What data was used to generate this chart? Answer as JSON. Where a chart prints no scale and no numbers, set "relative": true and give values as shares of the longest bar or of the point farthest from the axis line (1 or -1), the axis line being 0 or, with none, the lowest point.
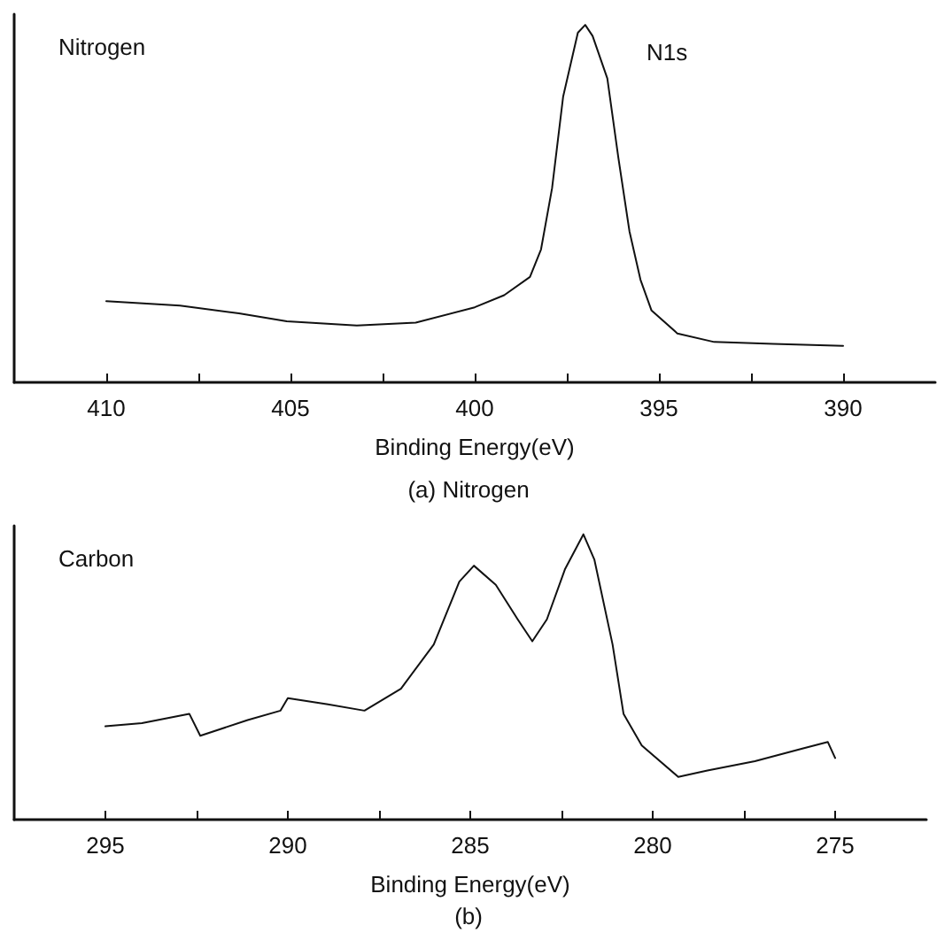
{
  "chart_data": [
    {
      "type": "line",
      "title": "(a) Nitrogen",
      "xlabel": "Binding Energy(eV)",
      "relative": true,
      "annotations": [
        "Nitrogen",
        "N1s"
      ],
      "xlim": [
        412.5,
        387.5
      ],
      "xticks": [
        410,
        {
          "value": 407.5,
          "label": null
        },
        405,
        {
          "value": 402.5,
          "label": null
        },
        400,
        {
          "value": 397.5,
          "label": null
        },
        395,
        {
          "value": 392.5,
          "label": null
        },
        390
      ],
      "grid": false,
      "marker": "none",
      "line_style": "solid",
      "series": [
        {
          "color": "#111111",
          "x": [
            410,
            408.0,
            406.4,
            405.1,
            403.2,
            401.6,
            400,
            399.2,
            398.5,
            398.2,
            397.9,
            397.6,
            397.2,
            397.0,
            396.8,
            396.4,
            396.1,
            395.8,
            395.5,
            395.2,
            394.5,
            393.5,
            391.9,
            390
          ],
          "values": [
            0.227,
            0.215,
            0.193,
            0.171,
            0.159,
            0.167,
            0.21,
            0.244,
            0.295,
            0.372,
            0.543,
            0.799,
            0.978,
            1,
            0.969,
            0.85,
            0.628,
            0.423,
            0.287,
            0.201,
            0.137,
            0.113,
            0.108,
            0.102
          ]
        }
      ]
    },
    {
      "type": "line",
      "title": "(b)",
      "xlabel": "Binding Energy(eV)",
      "relative": true,
      "annotations": [
        "Carbon"
      ],
      "xlim": [
        297.5,
        272.5
      ],
      "xticks": [
        295,
        {
          "value": 292.5,
          "label": null
        },
        290,
        {
          "value": 287.5,
          "label": null
        },
        285,
        {
          "value": 282.5,
          "label": null
        },
        280,
        {
          "value": 277.5,
          "label": null
        },
        275
      ],
      "grid": false,
      "marker": "none",
      "line_style": "solid",
      "series": [
        {
          "color": "#111111",
          "x": [
            295,
            294.0,
            292.7,
            292.4,
            291.1,
            290.2,
            290.0,
            288.9,
            287.9,
            286.9,
            286.0,
            285.3,
            284.9,
            284.3,
            283.7,
            283.3,
            282.9,
            282.4,
            281.9,
            281.6,
            281.1,
            280.8,
            280.3,
            279.3,
            278.5,
            277.2,
            275.9,
            275.2,
            275
          ],
          "values": [
            0.327,
            0.338,
            0.371,
            0.294,
            0.349,
            0.382,
            0.426,
            0.404,
            0.382,
            0.459,
            0.614,
            0.834,
            0.89,
            0.823,
            0.702,
            0.625,
            0.702,
            0.879,
            1,
            0.912,
            0.614,
            0.371,
            0.26,
            0.15,
            0.172,
            0.205,
            0.249,
            0.272,
            0.216
          ]
        }
      ]
    }
  ]
}
